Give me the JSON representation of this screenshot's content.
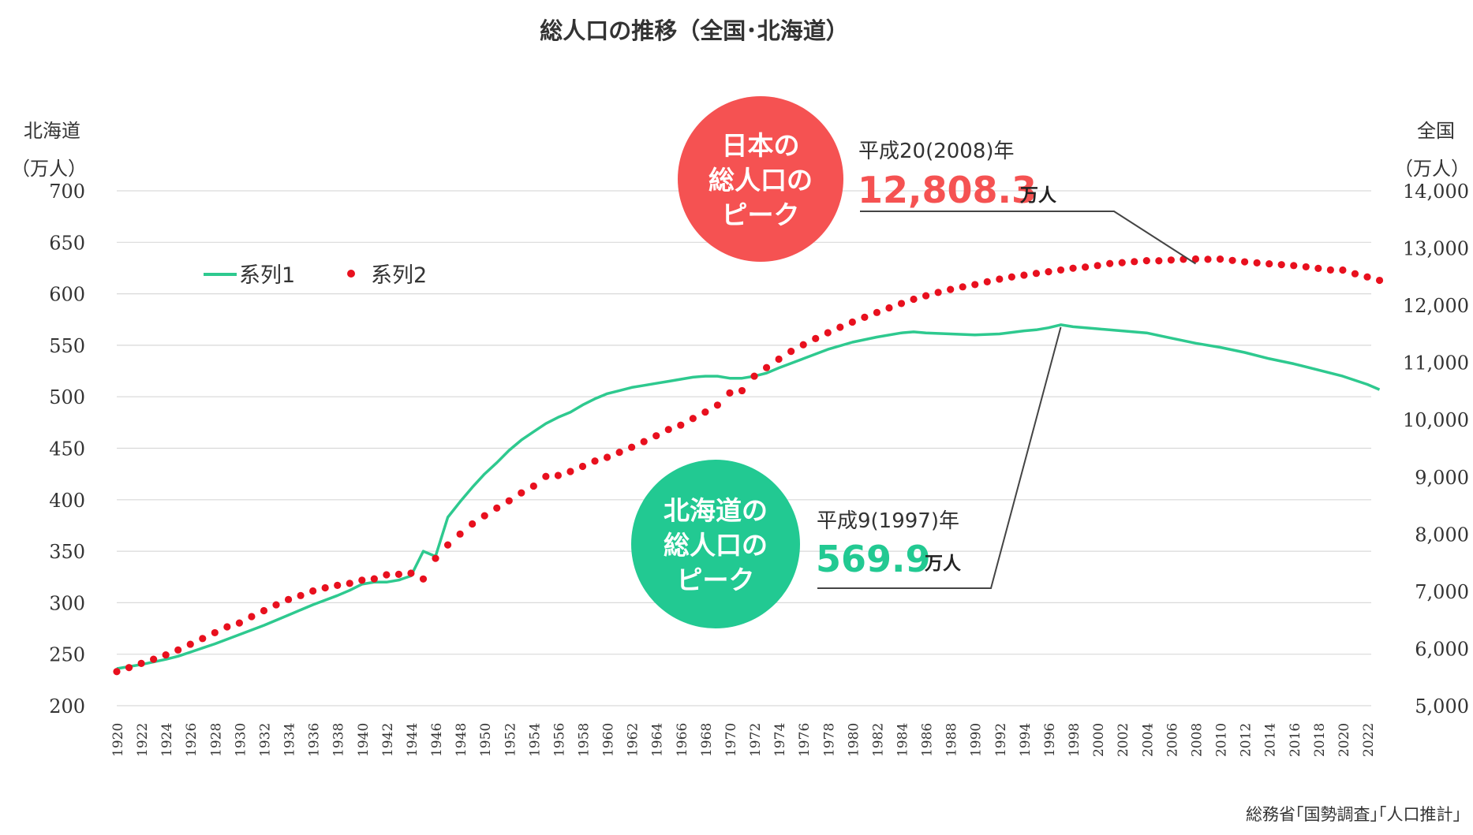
{
  "chart_data": {
    "type": "line",
    "title": "総人口の推移（全国･北海道）",
    "left_axis": {
      "label_line1": "北海道",
      "label_line2": "（万人）",
      "ylim": [
        200,
        700
      ],
      "ticks": [
        "200",
        "250",
        "300",
        "350",
        "400",
        "450",
        "500",
        "550",
        "600",
        "650",
        "700"
      ]
    },
    "right_axis": {
      "label_line1": "全国",
      "label_line2": "（万人）",
      "ylim": [
        5000,
        14000
      ],
      "ticks": [
        "5,000",
        "6,000",
        "7,000",
        "8,000",
        "9,000",
        "10,000",
        "11,000",
        "12,000",
        "13,000",
        "14,000"
      ]
    },
    "x_range": [
      1920,
      2023
    ],
    "x_tick_labels": [
      "1920",
      "1922",
      "1924",
      "1926",
      "1928",
      "1930",
      "1932",
      "1934",
      "1936",
      "1938",
      "1940",
      "1942",
      "1944",
      "1946",
      "1948",
      "1950",
      "1952",
      "1954",
      "1956",
      "1958",
      "1960",
      "1962",
      "1964",
      "1966",
      "1968",
      "1970",
      "1972",
      "1974",
      "1976",
      "1978",
      "1980",
      "1982",
      "1984",
      "1986",
      "1988",
      "1990",
      "1992",
      "1994",
      "1996",
      "1998",
      "2000",
      "2002",
      "2004",
      "2006",
      "2008",
      "2010",
      "2012",
      "2014",
      "2016",
      "2018",
      "2020",
      "2022"
    ],
    "grid": "horizontal",
    "legend_position": "top-left",
    "series": [
      {
        "name": "系列1",
        "axis": "left",
        "style": "line",
        "color": "#2ec98f",
        "x": [
          1920,
          1922,
          1924,
          1925,
          1926,
          1928,
          1930,
          1932,
          1934,
          1936,
          1938,
          1939,
          1940,
          1941,
          1942,
          1943,
          1944,
          1945,
          1946,
          1947,
          1948,
          1949,
          1950,
          1951,
          1952,
          1953,
          1954,
          1955,
          1956,
          1957,
          1958,
          1959,
          1960,
          1961,
          1962,
          1963,
          1964,
          1965,
          1966,
          1967,
          1968,
          1969,
          1970,
          1971,
          1972,
          1973,
          1974,
          1976,
          1978,
          1980,
          1982,
          1984,
          1985,
          1986,
          1988,
          1990,
          1992,
          1994,
          1995,
          1996,
          1997,
          1998,
          2000,
          2002,
          2004,
          2006,
          2008,
          2010,
          2012,
          2014,
          2016,
          2018,
          2020,
          2022,
          2023
        ],
        "values": [
          236,
          240,
          245,
          248,
          252,
          260,
          269,
          278,
          288,
          298,
          307,
          312,
          318,
          320,
          320,
          322,
          326,
          350,
          345,
          383,
          398,
          412,
          425,
          436,
          448,
          458,
          466,
          474,
          480,
          485,
          492,
          498,
          503,
          506,
          509,
          511,
          513,
          515,
          517,
          519,
          520,
          520,
          518,
          518,
          520,
          523,
          528,
          537,
          546,
          553,
          558,
          562,
          563,
          562,
          561,
          560,
          561,
          564,
          565,
          567,
          569.9,
          568,
          566,
          564,
          562,
          557,
          552,
          548,
          543,
          537,
          532,
          526,
          520,
          512,
          507
        ]
      },
      {
        "name": "系列2",
        "axis": "right",
        "style": "dots",
        "color": "#e8101e",
        "x": [
          1920,
          1921,
          1922,
          1923,
          1924,
          1925,
          1926,
          1927,
          1928,
          1929,
          1930,
          1931,
          1932,
          1933,
          1934,
          1935,
          1936,
          1937,
          1938,
          1939,
          1940,
          1941,
          1942,
          1943,
          1944,
          1945,
          1946,
          1947,
          1948,
          1949,
          1950,
          1951,
          1952,
          1953,
          1954,
          1955,
          1956,
          1957,
          1958,
          1959,
          1960,
          1961,
          1962,
          1963,
          1964,
          1965,
          1966,
          1967,
          1968,
          1969,
          1970,
          1971,
          1972,
          1973,
          1974,
          1975,
          1976,
          1977,
          1978,
          1979,
          1980,
          1981,
          1982,
          1983,
          1984,
          1985,
          1986,
          1987,
          1988,
          1989,
          1990,
          1991,
          1992,
          1993,
          1994,
          1995,
          1996,
          1997,
          1998,
          1999,
          2000,
          2001,
          2002,
          2003,
          2004,
          2005,
          2006,
          2007,
          2008,
          2009,
          2010,
          2011,
          2012,
          2013,
          2014,
          2015,
          2016,
          2017,
          2018,
          2019,
          2020,
          2021,
          2022,
          2023
        ],
        "values": [
          5596,
          5666,
          5739,
          5812,
          5888,
          5974,
          6074,
          6174,
          6276,
          6378,
          6445,
          6557,
          6661,
          6763,
          6856,
          6925,
          7006,
          7061,
          7104,
          7138,
          7193,
          7218,
          7288,
          7296,
          7315,
          7215,
          7575,
          7810,
          8000,
          8177,
          8320,
          8454,
          8581,
          8720,
          8839,
          9008,
          9024,
          9093,
          9183,
          9276,
          9342,
          9429,
          9518,
          9616,
          9718,
          9828,
          9904,
          10020,
          10133,
          10254,
          10467,
          10507,
          10760,
          10910,
          11057,
          11194,
          11309,
          11417,
          11519,
          11616,
          11706,
          11790,
          11873,
          11954,
          12030,
          12105,
          12166,
          12224,
          12275,
          12321,
          12361,
          12410,
          12457,
          12494,
          12526,
          12557,
          12586,
          12616,
          12647,
          12667,
          12693,
          12729,
          12744,
          12762,
          12779,
          12777,
          12790,
          12803,
          12808.3,
          12803,
          12806,
          12783,
          12759,
          12741,
          12724,
          12709,
          12693,
          12671,
          12644,
          12617,
          12615,
          12550,
          12495,
          12435
        ]
      }
    ],
    "annotations": [
      {
        "bubble": [
          "日本の",
          "総人口の",
          "ピーク"
        ],
        "bubble_color": "#f55252",
        "label": "平成20(2008)年",
        "value": "12,808.3",
        "value_color": "#f55252",
        "unit": "万人",
        "peak_year": 2008,
        "peak_value": 12808.3,
        "peak_axis": "right"
      },
      {
        "bubble": [
          "北海道の",
          "総人口の",
          "ピーク"
        ],
        "bubble_color": "#22c992",
        "label": "平成9(1997)年",
        "value": "569.9",
        "value_color": "#22c992",
        "unit": "万人",
        "peak_year": 1997,
        "peak_value": 569.9,
        "peak_axis": "left"
      }
    ],
    "source": "総務省｢国勢調査｣｢人口推計｣"
  }
}
